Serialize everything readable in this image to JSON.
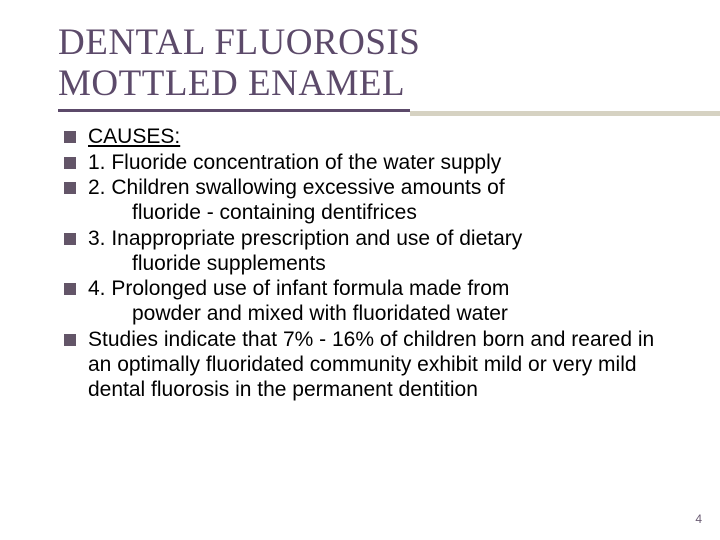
{
  "slide": {
    "title_line1": "DENTAL FLUOROSIS",
    "title_line2": "MOTTLED ENAMEL",
    "title_color": "#5c4a6a",
    "underline_color": "#5c4a6a",
    "underline_shadow_color": "#d6d2c2",
    "bullet_color": "#635568",
    "body_color": "#000000",
    "title_fontsize": 37,
    "body_fontsize": 21,
    "bullets": [
      {
        "text": "CAUSES:",
        "underline": true
      },
      {
        "text": "1. Fluoride concentration of the water supply"
      },
      {
        "text": "2. Children swallowing excessive amounts of",
        "cont": "fluoride  - containing dentifrices"
      },
      {
        "text": "3. Inappropriate prescription and use of dietary",
        "cont": "fluoride supplements"
      },
      {
        "text": "4. Prolonged use of infant formula made from",
        "cont": "powder and mixed with fluoridated water"
      },
      {
        "text": "Studies indicate that 7% - 16% of children born and reared in an optimally fluoridated community exhibit mild or very mild dental fluorosis in the permanent dentition"
      }
    ],
    "page_number": "4"
  }
}
